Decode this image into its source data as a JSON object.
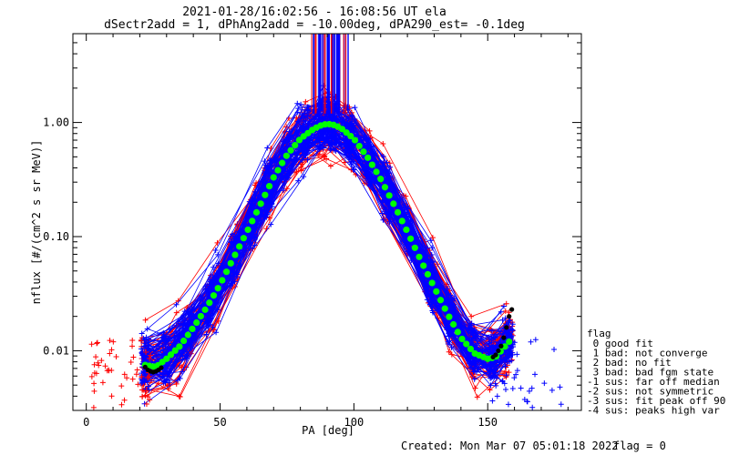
{
  "chart_data": {
    "type": "scatter",
    "title": "2021-01-28/16:02:56 - 16:08:56 UT ela",
    "subtitle": "dSectr2add = 1, dPhAng2add = -10.00deg, dPA290_est=  -0.1deg",
    "xlabel": "PA [deg]",
    "ylabel": "nflux [#/(cm^2 s sr MeV)]",
    "xlim": [
      -5,
      185
    ],
    "ylim": [
      0.003,
      6.0
    ],
    "yscale": "log",
    "x_ticks": [
      0,
      50,
      100,
      150
    ],
    "x_tick_labels": [
      "0",
      "50",
      "100",
      "150"
    ],
    "y_ticks": [
      0.01,
      0.1,
      1.0
    ],
    "y_tick_labels": [
      "0.01",
      "0.10",
      "1.00"
    ],
    "grid": false,
    "colors": {
      "red_series": "#ff0000",
      "blue_series": "#0000ff",
      "fit_curve": "#00ff00",
      "endpoints": "#000000"
    },
    "fit_curve": {
      "x": [
        22,
        26,
        30,
        35,
        40,
        45,
        50,
        55,
        60,
        65,
        70,
        75,
        80,
        85,
        88,
        90,
        92,
        95,
        100,
        105,
        110,
        115,
        120,
        125,
        130,
        135,
        140,
        145,
        150,
        153,
        155,
        158
      ],
      "y": [
        0.0075,
        0.0072,
        0.0085,
        0.011,
        0.016,
        0.024,
        0.038,
        0.065,
        0.11,
        0.19,
        0.33,
        0.52,
        0.72,
        0.88,
        0.95,
        0.97,
        0.96,
        0.9,
        0.72,
        0.5,
        0.32,
        0.19,
        0.11,
        0.062,
        0.036,
        0.021,
        0.013,
        0.0095,
        0.0085,
        0.0088,
        0.01,
        0.012
      ]
    },
    "black_tail_left": {
      "x": [
        22,
        23,
        24,
        25,
        26,
        27,
        28
      ],
      "y": [
        0.0072,
        0.0068,
        0.0066,
        0.0065,
        0.0066,
        0.0068,
        0.0071
      ]
    },
    "black_tail_right": {
      "x": [
        152,
        153,
        154,
        155,
        156,
        157,
        158,
        159
      ],
      "y": [
        0.0088,
        0.0092,
        0.01,
        0.011,
        0.013,
        0.016,
        0.02,
        0.023
      ]
    },
    "legend": {
      "placement": "right",
      "title": "flag",
      "entries": [
        " 0 good fit",
        " 1 bad: not converge",
        " 2 bad: no fit",
        " 3 bad: bad fgm state",
        "-1 sus: far off median",
        "-2 sus: not symmetric",
        "-3 sus: fit peak off 90",
        "-4 sus: peaks high var"
      ]
    },
    "footer": {
      "created": "Created: Mon Mar 07 05:01:18 2022",
      "flag": "flag = 0"
    }
  }
}
